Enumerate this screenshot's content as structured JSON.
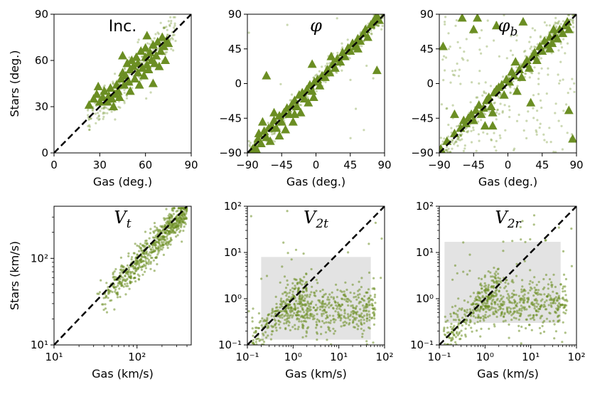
{
  "chart_data": [
    {
      "id": "inc",
      "type": "scatter",
      "title": "Inc.",
      "title_style": "plain",
      "xlabel": "Gas (deg.)",
      "ylabel": "Stars (deg.)",
      "xscale": "linear",
      "yscale": "linear",
      "xlim": [
        0,
        90
      ],
      "ylim": [
        0,
        90
      ],
      "xticks": [
        0,
        30,
        60,
        90
      ],
      "yticks": [
        0,
        30,
        60,
        90
      ],
      "xtick_labels": [
        "0",
        "30",
        "60",
        "90"
      ],
      "ytick_labels": [
        "0",
        "30",
        "60",
        "90"
      ],
      "reference_line": "y = x (dashed)",
      "series": [
        {
          "name": "points",
          "marker": "dot",
          "color": "#6b8e23",
          "description": "dense cloud about y = x over x 20 to 80",
          "count": 320
        },
        {
          "name": "triangles",
          "marker": "triangle",
          "color": "#6b8e23",
          "points": [
            [
              26,
              35
            ],
            [
              28,
              38
            ],
            [
              30,
              33
            ],
            [
              32,
              36
            ],
            [
              33,
              40
            ],
            [
              35,
              33
            ],
            [
              36,
              37
            ],
            [
              37,
              42
            ],
            [
              38,
              35
            ],
            [
              39,
              30
            ],
            [
              40,
              38
            ],
            [
              41,
              44
            ],
            [
              42,
              40
            ],
            [
              43,
              36
            ],
            [
              44,
              48
            ],
            [
              45,
              52
            ],
            [
              45,
              63
            ],
            [
              46,
              44
            ],
            [
              47,
              50
            ],
            [
              48,
              58
            ],
            [
              49,
              46
            ],
            [
              50,
              54
            ],
            [
              50,
              40
            ],
            [
              51,
              60
            ],
            [
              52,
              56
            ],
            [
              53,
              48
            ],
            [
              54,
              62
            ],
            [
              55,
              52
            ],
            [
              55,
              58
            ],
            [
              56,
              44
            ],
            [
              57,
              66
            ],
            [
              58,
              55
            ],
            [
              59,
              50
            ],
            [
              60,
              62
            ],
            [
              60,
              68
            ],
            [
              61,
              57
            ],
            [
              62,
              54
            ],
            [
              63,
              65
            ],
            [
              64,
              60
            ],
            [
              65,
              70
            ],
            [
              65,
              45
            ],
            [
              66,
              58
            ],
            [
              67,
              63
            ],
            [
              68,
              72
            ],
            [
              69,
              56
            ],
            [
              70,
              66
            ],
            [
              71,
              75
            ],
            [
              72,
              69
            ],
            [
              73,
              60
            ],
            [
              74,
              73
            ],
            [
              75,
              71
            ],
            [
              61,
              76
            ],
            [
              23,
              31
            ],
            [
              29,
              43
            ]
          ]
        }
      ]
    },
    {
      "id": "phi",
      "type": "scatter",
      "title": "φ",
      "title_style": "math",
      "xlabel": "Gas (deg.)",
      "ylabel": "",
      "xscale": "linear",
      "yscale": "linear",
      "xlim": [
        -90,
        90
      ],
      "ylim": [
        -90,
        90
      ],
      "xticks": [
        -90,
        -45,
        0,
        45,
        90
      ],
      "yticks": [
        -90,
        -45,
        0,
        45,
        90
      ],
      "xtick_labels": [
        "−90",
        "−45",
        "0",
        "45",
        "90"
      ],
      "ytick_labels": [
        "−90",
        "−45",
        "0",
        "45",
        "90"
      ],
      "reference_line": "y = x (dashed)",
      "series": [
        {
          "name": "points",
          "marker": "dot",
          "color": "#6b8e23",
          "description": "tight band about y = x across full range with scattered outliers",
          "count": 420
        },
        {
          "name": "triangles",
          "marker": "triangle",
          "color": "#6b8e23",
          "points": [
            [
              -85,
              -88
            ],
            [
              -80,
              -82
            ],
            [
              -76,
              -72
            ],
            [
              -72,
              -78
            ],
            [
              -68,
              -62
            ],
            [
              -65,
              -70
            ],
            [
              -62,
              -58
            ],
            [
              -58,
              -55
            ],
            [
              -55,
              -48
            ],
            [
              -52,
              -58
            ],
            [
              -48,
              -42
            ],
            [
              -45,
              -50
            ],
            [
              -42,
              -38
            ],
            [
              -38,
              -32
            ],
            [
              -35,
              -40
            ],
            [
              -32,
              -28
            ],
            [
              -28,
              -22
            ],
            [
              -25,
              -30
            ],
            [
              -22,
              -15
            ],
            [
              -18,
              -12
            ],
            [
              -15,
              -20
            ],
            [
              -12,
              -8
            ],
            [
              -8,
              -2
            ],
            [
              -5,
              -10
            ],
            [
              -2,
              2
            ],
            [
              2,
              5
            ],
            [
              5,
              -3
            ],
            [
              8,
              10
            ],
            [
              12,
              8
            ],
            [
              15,
              18
            ],
            [
              18,
              14
            ],
            [
              22,
              25
            ],
            [
              25,
              20
            ],
            [
              28,
              32
            ],
            [
              32,
              28
            ],
            [
              35,
              40
            ],
            [
              38,
              35
            ],
            [
              42,
              46
            ],
            [
              45,
              42
            ],
            [
              48,
              52
            ],
            [
              52,
              48
            ],
            [
              55,
              58
            ],
            [
              58,
              55
            ],
            [
              62,
              65
            ],
            [
              65,
              70
            ],
            [
              68,
              60
            ],
            [
              72,
              76
            ],
            [
              75,
              80
            ],
            [
              78,
              85
            ],
            [
              80,
              88
            ],
            [
              83,
              82
            ],
            [
              -83,
              -85
            ],
            [
              -78,
              -86
            ],
            [
              -5,
              25
            ],
            [
              -65,
              10
            ],
            [
              -40,
              -60
            ],
            [
              -70,
              -50
            ],
            [
              -48,
              -68
            ],
            [
              -55,
              -38
            ],
            [
              -30,
              -50
            ],
            [
              -20,
              -38
            ],
            [
              -10,
              -25
            ],
            [
              -75,
              -65
            ],
            [
              -60,
              -75
            ],
            [
              80,
              17
            ],
            [
              -3,
              -18
            ],
            [
              20,
              35
            ],
            [
              -28,
              -40
            ],
            [
              55,
              45
            ]
          ]
        }
      ]
    },
    {
      "id": "phi_b",
      "type": "scatter",
      "title": "φb",
      "title_style": "math",
      "xlabel": "Gas (deg.)",
      "ylabel": "",
      "xscale": "linear",
      "yscale": "linear",
      "xlim": [
        -90,
        90
      ],
      "ylim": [
        -90,
        90
      ],
      "xticks": [
        -90,
        -45,
        0,
        45,
        90
      ],
      "yticks": [
        -90,
        -45,
        0,
        45,
        90
      ],
      "xtick_labels": [
        "−90",
        "−45",
        "0",
        "45",
        "90"
      ],
      "ytick_labels": [
        "−90",
        "−45",
        "0",
        "45",
        "90"
      ],
      "reference_line": "y = x (dashed)",
      "series": [
        {
          "name": "points",
          "marker": "dot",
          "color": "#6b8e23",
          "description": "widely scattered points with concentration near y = x",
          "count": 450
        },
        {
          "name": "triangles",
          "marker": "triangle",
          "color": "#6b8e23",
          "points": [
            [
              -88,
              -85
            ],
            [
              -70,
              -65
            ],
            [
              -62,
              -58
            ],
            [
              -58,
              -48
            ],
            [
              -55,
              -52
            ],
            [
              -52,
              -45
            ],
            [
              -48,
              -40
            ],
            [
              -45,
              -48
            ],
            [
              -42,
              -35
            ],
            [
              -38,
              -28
            ],
            [
              -35,
              -40
            ],
            [
              -32,
              -32
            ],
            [
              -28,
              -22
            ],
            [
              -25,
              -18
            ],
            [
              -22,
              -30
            ],
            [
              -20,
              -55
            ],
            [
              -18,
              -12
            ],
            [
              -15,
              -8
            ],
            [
              -12,
              -5
            ],
            [
              -8,
              -2
            ],
            [
              -5,
              -15
            ],
            [
              -2,
              5
            ],
            [
              2,
              2
            ],
            [
              5,
              15
            ],
            [
              8,
              10
            ],
            [
              10,
              28
            ],
            [
              12,
              -10
            ],
            [
              15,
              18
            ],
            [
              18,
              8
            ],
            [
              22,
              25
            ],
            [
              25,
              30
            ],
            [
              28,
              20
            ],
            [
              30,
              -25
            ],
            [
              32,
              35
            ],
            [
              35,
              40
            ],
            [
              38,
              30
            ],
            [
              42,
              48
            ],
            [
              45,
              42
            ],
            [
              48,
              55
            ],
            [
              52,
              50
            ],
            [
              55,
              60
            ],
            [
              58,
              52
            ],
            [
              62,
              62
            ],
            [
              65,
              58
            ],
            [
              68,
              70
            ],
            [
              72,
              65
            ],
            [
              75,
              75
            ],
            [
              78,
              80
            ],
            [
              80,
              -35
            ],
            [
              85,
              -72
            ],
            [
              -85,
              48
            ],
            [
              -60,
              85
            ],
            [
              -40,
              85
            ],
            [
              -20,
              -38
            ],
            [
              -15,
              75
            ],
            [
              -70,
              -40
            ],
            [
              -30,
              -55
            ],
            [
              80,
              70
            ],
            [
              -45,
              70
            ],
            [
              -80,
              -75
            ],
            [
              20,
              80
            ],
            [
              55,
              45
            ],
            [
              60,
              70
            ]
          ]
        }
      ]
    },
    {
      "id": "vt",
      "type": "scatter",
      "title": "Vt",
      "title_style": "math",
      "xlabel": "Gas (km/s)",
      "ylabel": "Stars (km/s)",
      "xscale": "log",
      "yscale": "log",
      "xlim": [
        10,
        450
      ],
      "ylim": [
        10,
        400
      ],
      "xticks": [
        10,
        100
      ],
      "yticks": [
        10,
        100
      ],
      "xtick_labels": [
        "10¹",
        "10²"
      ],
      "ytick_labels": [
        "10¹",
        "10²"
      ],
      "reference_line": "y = x (dashed)",
      "series": [
        {
          "name": "points",
          "marker": "dot",
          "color": "#6b8e23",
          "description": "band about y = x from 30 to 400 km/s, stars slightly lower at low speeds",
          "count": 700
        }
      ]
    },
    {
      "id": "v2t",
      "type": "scatter",
      "title": "V2t",
      "title_style": "math",
      "xlabel": "Gas (km/s)",
      "ylabel": "",
      "xscale": "log",
      "yscale": "log",
      "xlim": [
        0.1,
        100
      ],
      "ylim": [
        0.1,
        100
      ],
      "xticks": [
        0.1,
        1,
        10,
        100
      ],
      "yticks": [
        0.1,
        1,
        10,
        100
      ],
      "xtick_labels": [
        "10⁻¹",
        "10⁰",
        "10¹",
        "10²"
      ],
      "ytick_labels": [
        "10⁻¹",
        "10⁰",
        "10¹",
        "10²"
      ],
      "reference_line": "y = x (dashed)",
      "shaded_region": {
        "x": [
          0.2,
          50
        ],
        "y": [
          0.13,
          8
        ],
        "color": "#e3e3e3"
      },
      "series": [
        {
          "name": "points",
          "marker": "dot",
          "color": "#6b8e23",
          "description": "stars cluster near 0.6 km/s for gas 1 to 60 km/s; low-gas points follow y = x",
          "count": 700
        }
      ]
    },
    {
      "id": "v2r",
      "type": "scatter",
      "title": "V2r",
      "title_style": "math",
      "xlabel": "Gas (km/s)",
      "ylabel": "",
      "xscale": "log",
      "yscale": "log",
      "xlim": [
        0.1,
        100
      ],
      "ylim": [
        0.1,
        100
      ],
      "xticks": [
        0.1,
        1,
        10,
        100
      ],
      "yticks": [
        0.1,
        1,
        10,
        100
      ],
      "xtick_labels": [
        "10⁻¹",
        "10⁰",
        "10¹",
        "10²"
      ],
      "ytick_labels": [
        "10⁻¹",
        "10⁰",
        "10¹",
        "10²"
      ],
      "reference_line": "y = x (dashed)",
      "shaded_region": {
        "x": [
          0.13,
          45
        ],
        "y": [
          0.3,
          17
        ],
        "color": "#e3e3e3"
      },
      "series": [
        {
          "name": "points",
          "marker": "dot",
          "color": "#6b8e23",
          "description": "stars cluster near 0.8 km/s for gas 1 to 60 km/s; low-gas points follow y = x",
          "count": 700
        }
      ]
    }
  ],
  "colors": {
    "points": "#6b8e23",
    "triangles": "#6b8e23",
    "reference_line": "#000000",
    "shaded_region": "#e3e3e3"
  }
}
